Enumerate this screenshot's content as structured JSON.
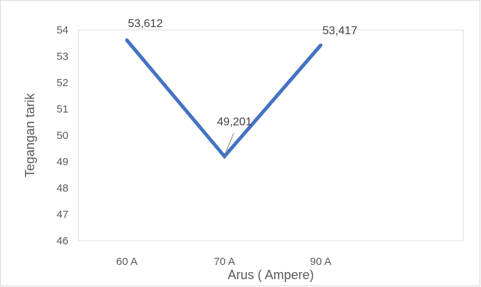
{
  "chart_data": {
    "type": "line",
    "categories": [
      "60 A",
      "70 A",
      "90 A"
    ],
    "series": [
      {
        "values": [
          53.612,
          49.201,
          53.417
        ]
      }
    ],
    "data_labels": [
      "53,612",
      "49,201",
      "53,417"
    ],
    "yticks": [
      "46",
      "47",
      "48",
      "49",
      "50",
      "51",
      "52",
      "53",
      "54"
    ],
    "ylim": [
      46,
      54
    ],
    "xlabel": "Arus ( Ampere)",
    "ylabel": "Tegangan tarik",
    "grid": false,
    "colors": {
      "line": "#4472C4",
      "leader": "#A6A6A6",
      "frame": "#D9D9D9"
    }
  }
}
